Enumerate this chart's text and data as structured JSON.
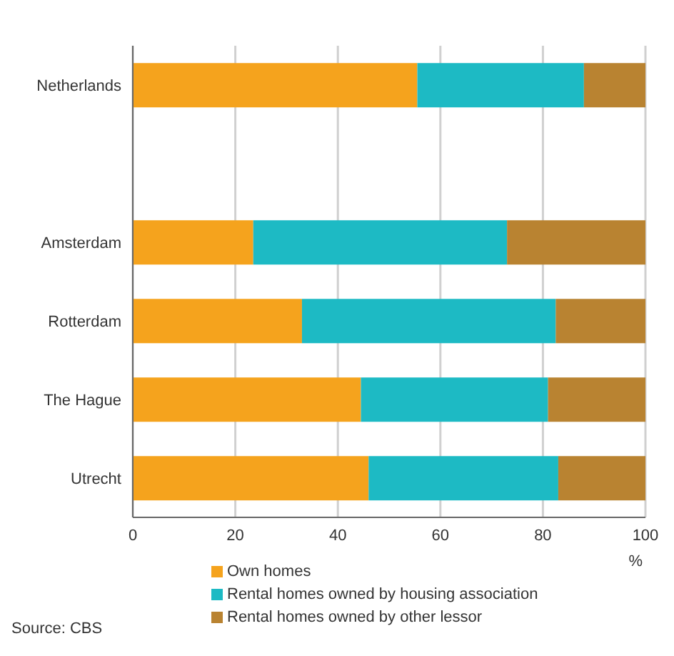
{
  "chart_data": {
    "type": "bar",
    "orientation": "horizontal",
    "stacked": true,
    "categories": [
      "Netherlands",
      null,
      "Amsterdam",
      "Rotterdam",
      "The Hague",
      "Utrecht"
    ],
    "series": [
      {
        "name": "Own homes",
        "color": "#f5a31d",
        "values": [
          55.5,
          null,
          23.5,
          33,
          44.5,
          46
        ]
      },
      {
        "name": "Rental homes owned by housing association",
        "color": "#1dbac4",
        "values": [
          32.5,
          null,
          49.5,
          49.5,
          36.5,
          37
        ]
      },
      {
        "name": "Rental homes owned by other lessor",
        "color": "#b98331",
        "values": [
          12,
          null,
          27,
          17.5,
          19,
          17
        ]
      }
    ],
    "xlim": [
      0,
      100
    ],
    "xticks": [
      0,
      20,
      40,
      60,
      80,
      100
    ],
    "xlabel": "%",
    "grid": "x",
    "legend": "bottom",
    "annotations": [
      "Source: CBS"
    ]
  }
}
